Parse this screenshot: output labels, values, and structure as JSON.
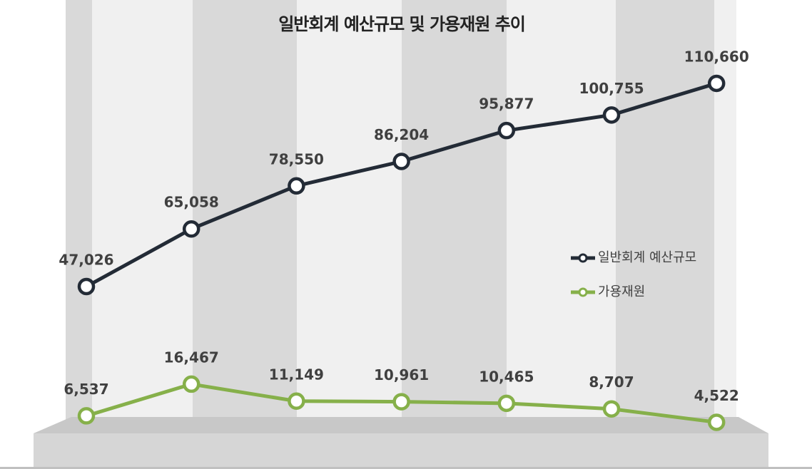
{
  "chart_data": {
    "type": "line",
    "title": "일반회계 예산규모 및 가용재원 추이",
    "series": [
      {
        "name": "일반회계 예산규모",
        "color": "#232b36",
        "values": [
          47026,
          65058,
          78550,
          86204,
          95877,
          100755,
          110660
        ],
        "value_labels": [
          "47,026",
          "65,058",
          "78,550",
          "86,204",
          "95,877",
          "100,755",
          "110,660"
        ]
      },
      {
        "name": "가용재원",
        "color": "#86b04a",
        "values": [
          6537,
          16467,
          11149,
          10961,
          10465,
          8707,
          4522
        ],
        "value_labels": [
          "6,537",
          "16,467",
          "11,149",
          "10,961",
          "10,465",
          "8,707",
          "4,522"
        ]
      }
    ]
  }
}
